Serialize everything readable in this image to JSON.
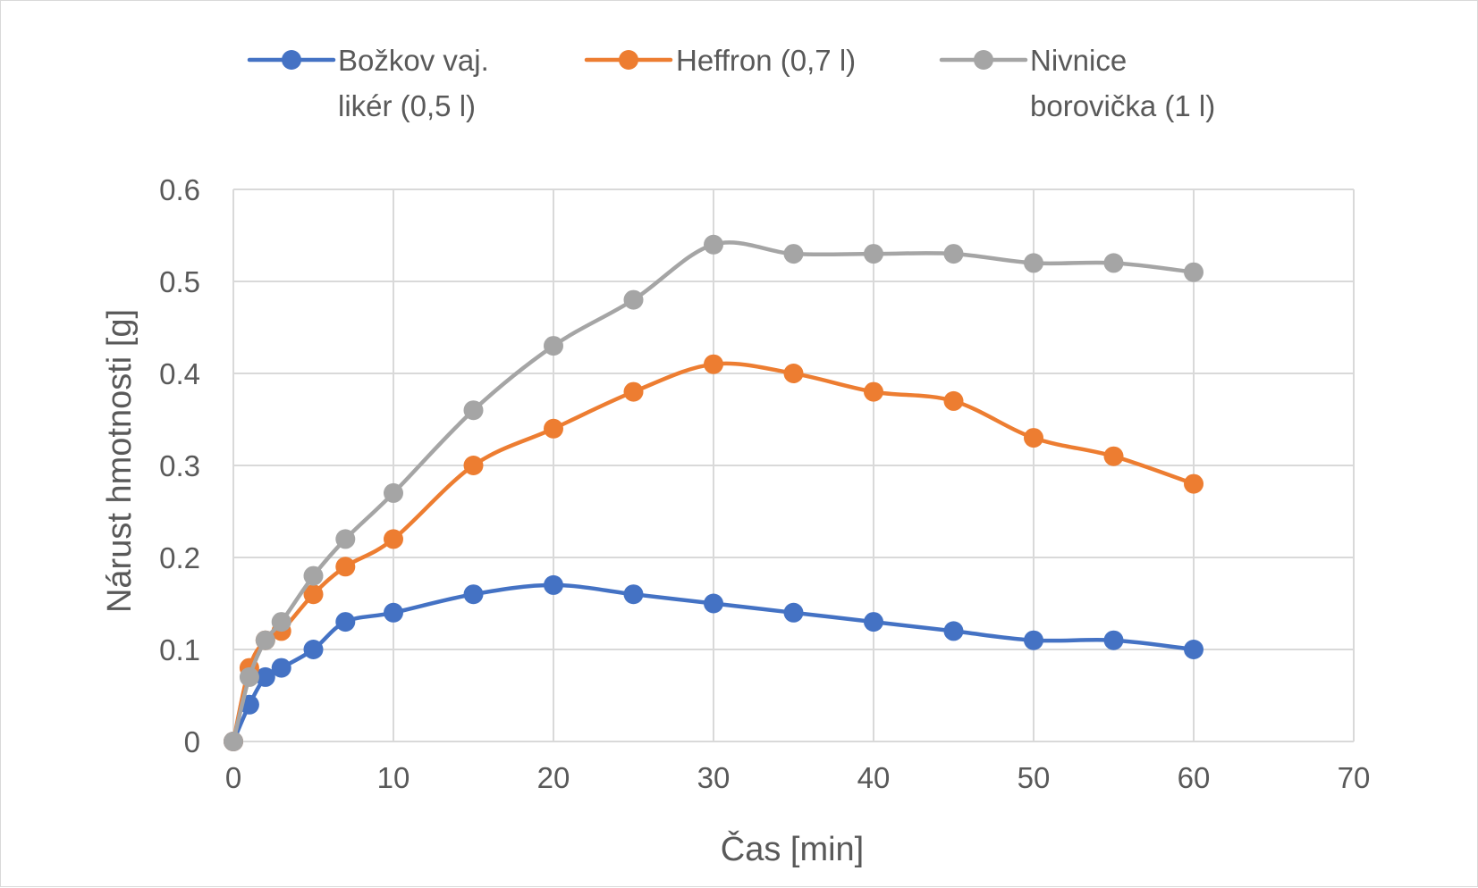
{
  "chart_data": {
    "type": "line",
    "title": "",
    "xlabel": "Čas [min]",
    "ylabel": "Nárust hmotnosti [g]",
    "xlim": [
      0,
      70
    ],
    "ylim": [
      0,
      0.6
    ],
    "x_ticks": [
      "0",
      "10",
      "20",
      "30",
      "40",
      "50",
      "60",
      "70"
    ],
    "y_ticks": [
      "0",
      "0.1",
      "0.2",
      "0.3",
      "0.4",
      "0.5",
      "0.6"
    ],
    "grid": true,
    "legend": "top",
    "x": [
      0,
      1,
      2,
      3,
      5,
      7,
      10,
      15,
      20,
      25,
      30,
      35,
      40,
      45,
      50,
      55,
      60
    ],
    "series": [
      {
        "name_lines": [
          "Božkov vaj.",
          "likér (0,5 l)"
        ],
        "color": "#4472C4",
        "values": [
          0,
          0.04,
          0.07,
          0.08,
          0.1,
          0.13,
          0.14,
          0.16,
          0.17,
          0.16,
          0.15,
          0.14,
          0.13,
          0.12,
          0.11,
          0.11,
          0.1
        ]
      },
      {
        "name_lines": [
          "Heffron (0,7 l)"
        ],
        "color": "#ED7D31",
        "values": [
          0,
          0.08,
          0.11,
          0.12,
          0.16,
          0.19,
          0.22,
          0.3,
          0.34,
          0.38,
          0.41,
          0.4,
          0.38,
          0.37,
          0.33,
          0.31,
          0.28
        ]
      },
      {
        "name_lines": [
          "Nivnice",
          "borovička (1 l)"
        ],
        "color": "#A5A5A5",
        "values": [
          0,
          0.07,
          0.11,
          0.13,
          0.18,
          0.22,
          0.27,
          0.36,
          0.43,
          0.48,
          0.54,
          0.53,
          0.53,
          0.53,
          0.52,
          0.52,
          0.51
        ]
      }
    ]
  }
}
